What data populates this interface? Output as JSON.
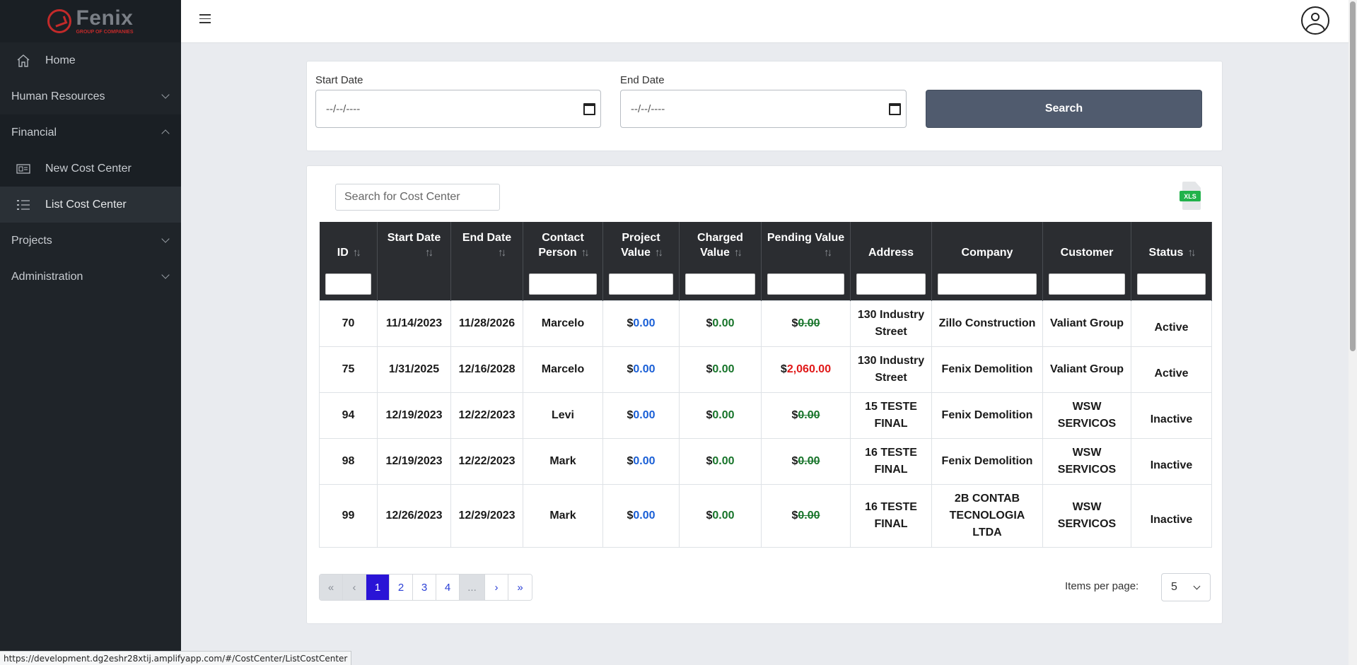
{
  "brand": {
    "name": "Fenix",
    "tagline": "GROUP OF COMPANIES",
    "accent": "#c22a2a"
  },
  "sidebar": {
    "home": "Home",
    "items": [
      {
        "label": "Human Resources",
        "expanded": false
      },
      {
        "label": "Financial",
        "expanded": true
      },
      {
        "label": "Projects",
        "expanded": false
      },
      {
        "label": "Administration",
        "expanded": false
      }
    ],
    "financial_sub": [
      {
        "label": "New Cost Center",
        "icon": "cost-center-icon"
      },
      {
        "label": "List Cost Center",
        "icon": "list-icon",
        "active": true
      }
    ]
  },
  "filters": {
    "start_label": "Start Date",
    "end_label": "End Date",
    "start_value": "--/--/----",
    "end_value": "--/--/----",
    "search_button": "Search"
  },
  "table_search": {
    "placeholder": "Search for Cost Center"
  },
  "export": {
    "label": "XLS",
    "color": "#21b24b"
  },
  "table": {
    "headers": {
      "id": "ID",
      "start_date": "Start Date",
      "end_date": "End Date",
      "contact_person": "Contact Person",
      "project_value": "Project Value",
      "charged_value": "Charged Value",
      "pending_value": "Pending Value",
      "address": "Address",
      "company": "Company",
      "customer": "Customer",
      "status": "Status"
    },
    "currency": "$",
    "rows": [
      {
        "id": "70",
        "start": "11/14/2023",
        "end": "11/28/2026",
        "contact": "Marcelo",
        "project": "0.00",
        "charged": "0.00",
        "pending": "0.00",
        "address": "130 Industry Street",
        "company": "Zillo Construction",
        "customer": "Valiant Group",
        "status": "Active"
      },
      {
        "id": "75",
        "start": "1/31/2025",
        "end": "12/16/2028",
        "contact": "Marcelo",
        "project": "0.00",
        "charged": "0.00",
        "pending": "2,060.00",
        "address": "130 Industry Street",
        "company": "Fenix Demolition",
        "customer": "Valiant Group",
        "status": "Active"
      },
      {
        "id": "94",
        "start": "12/19/2023",
        "end": "12/22/2023",
        "contact": "Levi",
        "project": "0.00",
        "charged": "0.00",
        "pending": "0.00",
        "address": "15 TESTE FINAL",
        "company": "Fenix Demolition",
        "customer": "WSW SERVICOS",
        "status": "Inactive"
      },
      {
        "id": "98",
        "start": "12/19/2023",
        "end": "12/22/2023",
        "contact": "Mark",
        "project": "0.00",
        "charged": "0.00",
        "pending": "0.00",
        "address": "16 TESTE FINAL",
        "company": "Fenix Demolition",
        "customer": "WSW SERVICOS",
        "status": "Inactive"
      },
      {
        "id": "99",
        "start": "12/26/2023",
        "end": "12/29/2023",
        "contact": "Mark",
        "project": "0.00",
        "charged": "0.00",
        "pending": "0.00",
        "address": "16 TESTE FINAL",
        "company": "2B CONTAB TECNOLOGIA LTDA",
        "customer": "WSW SERVICOS",
        "status": "Inactive"
      }
    ],
    "colors": {
      "project": "#1a5fd6",
      "charged": "#17742a",
      "pending_zero": "#17742a",
      "pending_due": "#e01818",
      "active": "#3a9d4e"
    }
  },
  "pagination": {
    "first": "«",
    "prev": "‹",
    "pages": [
      "1",
      "2",
      "3",
      "4"
    ],
    "current": "1",
    "ellipsis": "...",
    "next": "›",
    "last": "»",
    "items_per_page_label": "Items per page:",
    "items_per_page": "5"
  },
  "status_bar": {
    "url": "https://development.dg2eshr28xtij.amplifyapp.com/#/CostCenter/ListCostCenter"
  }
}
